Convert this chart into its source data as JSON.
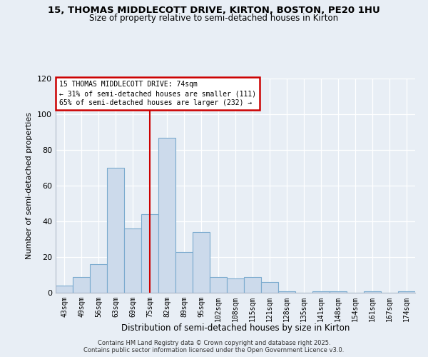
{
  "title1": "15, THOMAS MIDDLECOTT DRIVE, KIRTON, BOSTON, PE20 1HU",
  "title2": "Size of property relative to semi-detached houses in Kirton",
  "xlabel": "Distribution of semi-detached houses by size in Kirton",
  "ylabel": "Number of semi-detached properties",
  "categories": [
    "43sqm",
    "49sqm",
    "56sqm",
    "63sqm",
    "69sqm",
    "75sqm",
    "82sqm",
    "89sqm",
    "95sqm",
    "102sqm",
    "108sqm",
    "115sqm",
    "121sqm",
    "128sqm",
    "135sqm",
    "141sqm",
    "148sqm",
    "154sqm",
    "161sqm",
    "167sqm",
    "174sqm"
  ],
  "values": [
    4,
    9,
    16,
    70,
    36,
    44,
    87,
    23,
    34,
    9,
    8,
    9,
    6,
    1,
    0,
    1,
    1,
    0,
    1,
    0,
    1
  ],
  "bar_color": "#ccdaeb",
  "bar_edge_color": "#7aaace",
  "vline_index": 5,
  "annotation_title": "15 THOMAS MIDDLECOTT DRIVE: 74sqm",
  "annotation_line1": "← 31% of semi-detached houses are smaller (111)",
  "annotation_line2": "65% of semi-detached houses are larger (232) →",
  "annotation_box_color": "#ffffff",
  "annotation_box_edge": "#cc0000",
  "vline_color": "#cc0000",
  "ylim": [
    0,
    120
  ],
  "yticks": [
    0,
    20,
    40,
    60,
    80,
    100,
    120
  ],
  "bg_color": "#e8eef5",
  "footer1": "Contains HM Land Registry data © Crown copyright and database right 2025.",
  "footer2": "Contains public sector information licensed under the Open Government Licence v3.0."
}
